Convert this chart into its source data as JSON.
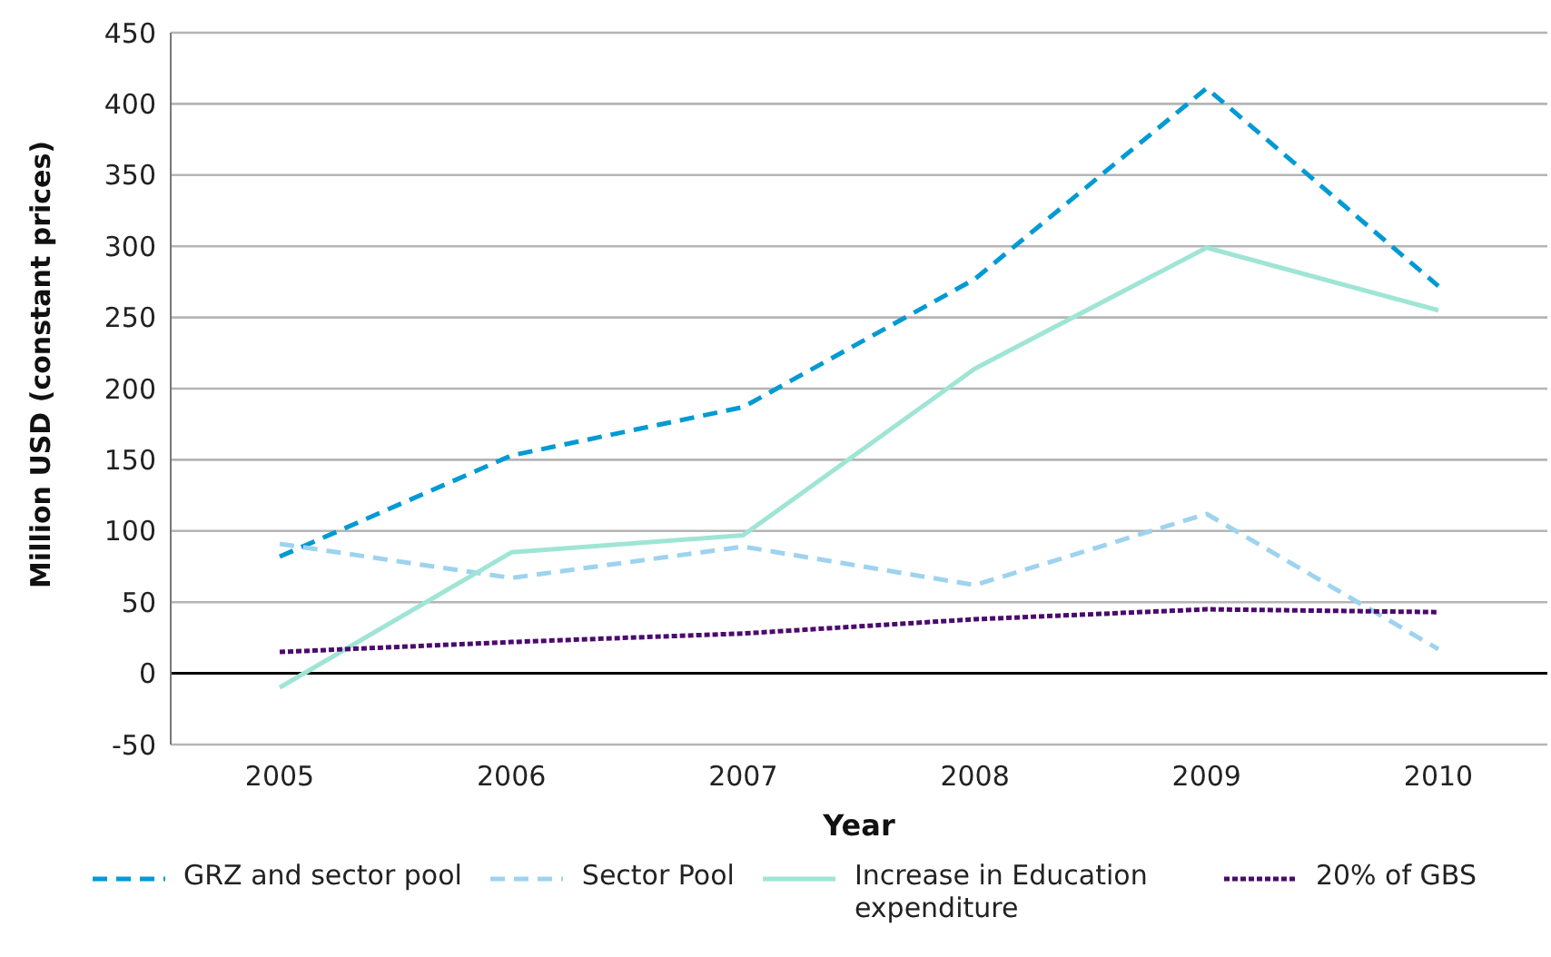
{
  "chart_data": {
    "type": "line",
    "xlabel": "Year",
    "ylabel": "Million USD (constant prices)",
    "categories": [
      "2005",
      "2006",
      "2007",
      "2008",
      "2009",
      "2010"
    ],
    "series": [
      {
        "name": "GRZ and sector pool",
        "color": "#009ad4",
        "line_style": "dashed",
        "values": [
          82,
          153,
          187,
          277,
          411,
          272
        ]
      },
      {
        "name": "Sector Pool",
        "color": "#9dd3ef",
        "line_style": "dashed",
        "values": [
          91,
          67,
          89,
          62,
          112,
          17
        ]
      },
      {
        "name": "Increase in Education expenditure",
        "color": "#9fe5d5",
        "line_style": "solid",
        "values": [
          -10,
          85,
          97,
          214,
          299,
          255
        ]
      },
      {
        "name": "20% of GBS",
        "color": "#4b0a6e",
        "line_style": "dotted",
        "values": [
          15,
          22,
          28,
          38,
          45,
          43
        ]
      }
    ],
    "ylim": [
      -50,
      450
    ],
    "yticks": [
      -50,
      0,
      50,
      100,
      150,
      200,
      250,
      300,
      350,
      400,
      450
    ],
    "ref_lines": [
      {
        "axis": "y",
        "value": 0,
        "color": "#000000"
      }
    ],
    "grid": "y",
    "legend": "bottom",
    "marker": "none"
  }
}
